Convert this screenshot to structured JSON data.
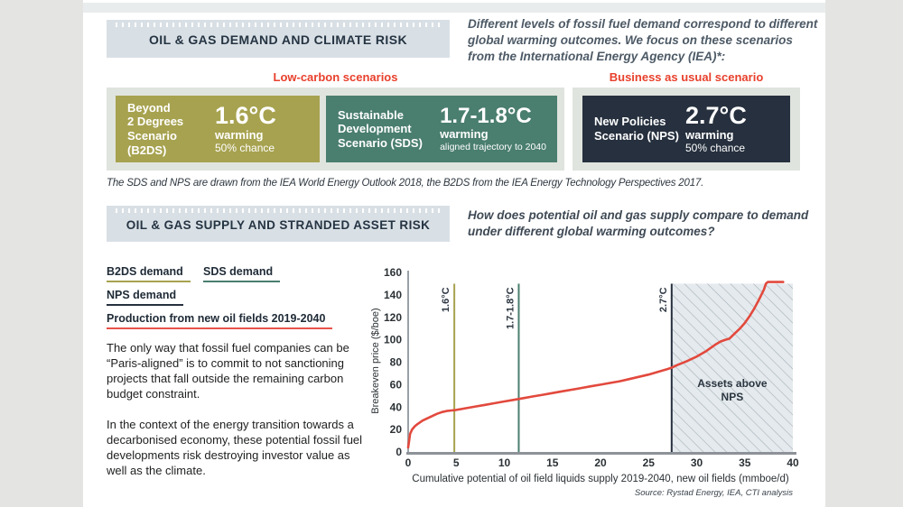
{
  "section1": {
    "title": "OIL & GAS DEMAND AND CLIMATE RISK",
    "intro": "Different levels of fossil fuel demand correspond to different global warming outcomes. We focus on these scenarios from the International Energy Agency (IEA)*:",
    "low_carbon_label": "Low-carbon scenarios",
    "bau_label": "Business as usual scenario",
    "scenarios": [
      {
        "name_lines": [
          "Beyond",
          "2 Degrees",
          "Scenario (B2DS)"
        ],
        "temp": "1.6°C",
        "sub1": "warming",
        "sub2": "50% chance",
        "color": "#a7a24f"
      },
      {
        "name_lines": [
          "Sustainable",
          "Development",
          "Scenario (SDS)"
        ],
        "temp": "1.7-1.8°C",
        "sub1": "warming",
        "sub2": "aligned trajectory to 2040",
        "color": "#4a7e6f"
      },
      {
        "name_lines": [
          "New Policies",
          "Scenario (NPS)"
        ],
        "temp": "2.7°C",
        "sub1": "warming",
        "sub2": "50% chance",
        "color": "#26303e"
      }
    ],
    "caption": "The SDS and NPS are drawn from the IEA World Energy Outlook 2018, the B2DS from the IEA Energy Technology Perspectives 2017."
  },
  "section2": {
    "title": "OIL & GAS SUPPLY AND STRANDED ASSET RISK",
    "question": "How does potential oil and gas supply compare to demand under different global warming outcomes?",
    "legend": [
      {
        "label": "B2DS demand",
        "color": "#a7a24f"
      },
      {
        "label": "SDS demand",
        "color": "#4a7e6f"
      },
      {
        "label": "NPS demand",
        "color": "#26303e"
      },
      {
        "label": "Production from new oil fields 2019-2040",
        "color": "#e8534a"
      }
    ],
    "para1": "The only way that fossil fuel companies can be “Paris-aligned” is to commit to not sanctioning projects that fall outside the remaining carbon budget constraint.",
    "para2": "In the context of the energy transition towards a decarbonised economy, these potential fossil fuel developments risk destroying investor value as well as the climate."
  },
  "chart_data": {
    "type": "line",
    "xlabel": "Cumulative potential of oil field liquids supply 2019-2040, new oil fields (mmboe/d)",
    "ylabel": "Breakeven price ($/boe)",
    "xlim": [
      0,
      40
    ],
    "ylim": [
      0,
      160
    ],
    "xticks": [
      0,
      5,
      10,
      15,
      20,
      25,
      30,
      35,
      40
    ],
    "yticks": [
      0,
      20,
      40,
      60,
      80,
      100,
      120,
      140,
      160
    ],
    "grid": false,
    "series": [
      {
        "name": "Production from new oil fields 2019-2040",
        "color": "#e2493d",
        "points": [
          [
            0,
            4
          ],
          [
            0.1,
            10
          ],
          [
            0.2,
            16
          ],
          [
            0.4,
            20
          ],
          [
            0.7,
            23
          ],
          [
            1,
            25
          ],
          [
            1.5,
            28
          ],
          [
            2,
            30
          ],
          [
            2.5,
            32
          ],
          [
            3,
            34
          ],
          [
            3.5,
            35.5
          ],
          [
            4,
            36.5
          ],
          [
            4.5,
            37
          ],
          [
            5,
            37.5
          ],
          [
            6,
            39
          ],
          [
            7,
            40.5
          ],
          [
            8,
            42
          ],
          [
            9,
            43.5
          ],
          [
            10,
            45
          ],
          [
            11,
            46.5
          ],
          [
            12,
            48
          ],
          [
            13,
            49.5
          ],
          [
            14,
            51
          ],
          [
            15,
            52.5
          ],
          [
            16,
            54
          ],
          [
            17,
            55.5
          ],
          [
            18,
            57
          ],
          [
            19,
            58.5
          ],
          [
            20,
            60
          ],
          [
            21,
            61.5
          ],
          [
            22,
            63
          ],
          [
            23,
            65
          ],
          [
            24,
            67
          ],
          [
            25,
            69
          ],
          [
            26,
            71.5
          ],
          [
            27,
            74
          ],
          [
            27.5,
            75.5
          ],
          [
            28,
            77.5
          ],
          [
            29,
            81
          ],
          [
            30,
            85
          ],
          [
            31,
            90
          ],
          [
            31.5,
            93
          ],
          [
            32,
            96
          ],
          [
            32.5,
            98.5
          ],
          [
            33,
            100
          ],
          [
            33.4,
            101
          ],
          [
            34,
            106
          ],
          [
            34.5,
            110
          ],
          [
            35,
            115
          ],
          [
            35.5,
            121
          ],
          [
            36,
            128
          ],
          [
            36.5,
            136
          ],
          [
            37,
            145
          ],
          [
            37.2,
            150
          ],
          [
            37.4,
            151.5
          ],
          [
            38,
            151.5
          ],
          [
            39,
            151.5
          ]
        ]
      }
    ],
    "scenario_lines": [
      {
        "label": "1.6°C",
        "x": 4.8,
        "top": 150,
        "color": "#a7a24f"
      },
      {
        "label": "1.7-1.8°C",
        "x": 11.5,
        "top": 150,
        "color": "#4a7e6f"
      },
      {
        "label": "2.7°C",
        "x": 27.4,
        "top": 150,
        "color": "#26303e"
      }
    ],
    "shaded_region": {
      "from_x": 27.4,
      "to_x": 40,
      "top": 150,
      "label_lines": [
        "Assets above",
        "NPS"
      ],
      "fill": "#e4eaed",
      "hatch_color": "#a9b2ba"
    },
    "source": "Source: Rystad Energy, IEA, CTI analysis"
  }
}
